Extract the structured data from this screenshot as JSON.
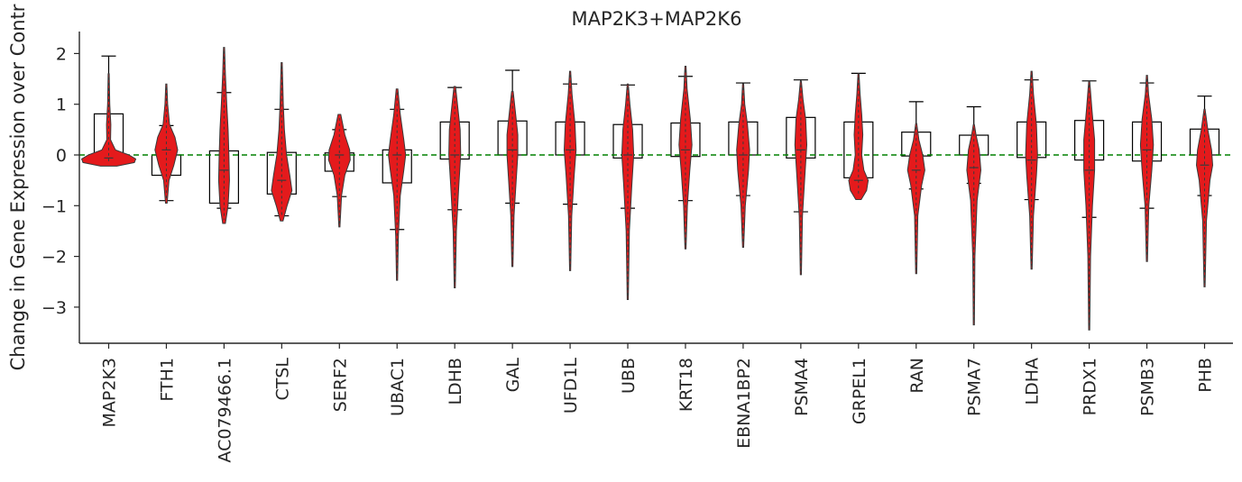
{
  "chart_data": {
    "type": "violin",
    "title": "MAP2K3+MAP2K6",
    "xlabel": "",
    "ylabel": "Change in Gene Expression over Contr",
    "ylim": [
      -3.75,
      2.4
    ],
    "yticks": [
      2,
      1,
      0,
      -1,
      -2,
      -3
    ],
    "ytick_labels": [
      "2",
      "1",
      "0",
      "−1",
      "−2",
      "−3"
    ],
    "reference_line": {
      "y": 0,
      "style": "dashed",
      "color": "#008000"
    },
    "violin_color": "#e41a1c",
    "categories": [
      "MAP2K3",
      "FTH1",
      "AC079466.1",
      "CTSL",
      "SERF2",
      "UBAC1",
      "LDHB",
      "GAL",
      "UFD1L",
      "UBB",
      "KRT18",
      "EBNA1BP2",
      "PSMA4",
      "GRPEL1",
      "RAN",
      "PSMA7",
      "LDHA",
      "PRDX1",
      "PSMB3",
      "PHB"
    ],
    "violins": [
      {
        "name": "MAP2K3",
        "min": -0.22,
        "max": 1.6,
        "median": -0.06,
        "profile": [
          [
            -0.22,
            0.3
          ],
          [
            -0.15,
            0.95
          ],
          [
            -0.08,
            1.0
          ],
          [
            0.0,
            0.75
          ],
          [
            0.1,
            0.25
          ],
          [
            0.3,
            0.07
          ],
          [
            0.6,
            0.08
          ],
          [
            1.0,
            0.04
          ],
          [
            1.6,
            0.02
          ]
        ]
      },
      {
        "name": "FTH1",
        "min": -0.95,
        "max": 1.4,
        "median": 0.1,
        "profile": [
          [
            -0.95,
            0.03
          ],
          [
            -0.5,
            0.1
          ],
          [
            -0.2,
            0.28
          ],
          [
            0.1,
            0.42
          ],
          [
            0.35,
            0.32
          ],
          [
            0.6,
            0.12
          ],
          [
            1.0,
            0.05
          ],
          [
            1.4,
            0.02
          ]
        ]
      },
      {
        "name": "AC079466.1",
        "min": -1.35,
        "max": 2.12,
        "median": -0.3,
        "profile": [
          [
            -1.35,
            0.05
          ],
          [
            -1.0,
            0.15
          ],
          [
            -0.5,
            0.2
          ],
          [
            0.0,
            0.18
          ],
          [
            0.5,
            0.15
          ],
          [
            1.0,
            0.1
          ],
          [
            1.6,
            0.05
          ],
          [
            2.12,
            0.02
          ]
        ]
      },
      {
        "name": "CTSL",
        "min": -1.3,
        "max": 1.82,
        "median": -0.5,
        "profile": [
          [
            -1.3,
            0.05
          ],
          [
            -1.0,
            0.2
          ],
          [
            -0.7,
            0.38
          ],
          [
            -0.4,
            0.3
          ],
          [
            0.0,
            0.18
          ],
          [
            0.5,
            0.1
          ],
          [
            1.0,
            0.06
          ],
          [
            1.82,
            0.02
          ]
        ]
      },
      {
        "name": "SERF2",
        "min": -1.42,
        "max": 0.8,
        "median": 0.0,
        "profile": [
          [
            -1.42,
            0.02
          ],
          [
            -0.8,
            0.08
          ],
          [
            -0.4,
            0.2
          ],
          [
            -0.1,
            0.4
          ],
          [
            0.1,
            0.38
          ],
          [
            0.4,
            0.2
          ],
          [
            0.8,
            0.05
          ]
        ]
      },
      {
        "name": "UBAC1",
        "min": -2.47,
        "max": 1.3,
        "median": 0.0,
        "profile": [
          [
            -2.47,
            0.02
          ],
          [
            -1.6,
            0.05
          ],
          [
            -0.8,
            0.12
          ],
          [
            -0.3,
            0.25
          ],
          [
            0.0,
            0.32
          ],
          [
            0.3,
            0.25
          ],
          [
            0.8,
            0.12
          ],
          [
            1.3,
            0.03
          ]
        ]
      },
      {
        "name": "LDHB",
        "min": -2.62,
        "max": 1.35,
        "median": 0.0,
        "profile": [
          [
            -2.62,
            0.02
          ],
          [
            -1.5,
            0.06
          ],
          [
            -0.6,
            0.15
          ],
          [
            0.0,
            0.22
          ],
          [
            0.5,
            0.2
          ],
          [
            1.0,
            0.1
          ],
          [
            1.35,
            0.03
          ]
        ]
      },
      {
        "name": "GAL",
        "min": -2.2,
        "max": 1.25,
        "median": 0.1,
        "profile": [
          [
            -2.2,
            0.02
          ],
          [
            -1.2,
            0.06
          ],
          [
            -0.5,
            0.14
          ],
          [
            0.0,
            0.2
          ],
          [
            0.4,
            0.2
          ],
          [
            0.9,
            0.1
          ],
          [
            1.25,
            0.03
          ]
        ]
      },
      {
        "name": "UFD1L",
        "min": -2.28,
        "max": 1.65,
        "median": 0.1,
        "profile": [
          [
            -2.28,
            0.02
          ],
          [
            -1.2,
            0.06
          ],
          [
            -0.4,
            0.15
          ],
          [
            0.1,
            0.22
          ],
          [
            0.6,
            0.18
          ],
          [
            1.2,
            0.07
          ],
          [
            1.65,
            0.02
          ]
        ]
      },
      {
        "name": "UBB",
        "min": -2.85,
        "max": 1.4,
        "median": 0.0,
        "profile": [
          [
            -2.85,
            0.02
          ],
          [
            -1.5,
            0.06
          ],
          [
            -0.6,
            0.15
          ],
          [
            0.0,
            0.22
          ],
          [
            0.5,
            0.18
          ],
          [
            1.0,
            0.08
          ],
          [
            1.4,
            0.02
          ]
        ]
      },
      {
        "name": "KRT18",
        "min": -1.85,
        "max": 1.75,
        "median": 0.1,
        "profile": [
          [
            -1.85,
            0.02
          ],
          [
            -1.0,
            0.07
          ],
          [
            -0.3,
            0.16
          ],
          [
            0.2,
            0.24
          ],
          [
            0.7,
            0.18
          ],
          [
            1.3,
            0.06
          ],
          [
            1.75,
            0.02
          ]
        ]
      },
      {
        "name": "EBNA1BP2",
        "min": -1.82,
        "max": 1.4,
        "median": 0.0,
        "profile": [
          [
            -1.82,
            0.02
          ],
          [
            -1.0,
            0.08
          ],
          [
            -0.3,
            0.2
          ],
          [
            0.1,
            0.24
          ],
          [
            0.6,
            0.16
          ],
          [
            1.0,
            0.06
          ],
          [
            1.4,
            0.02
          ]
        ]
      },
      {
        "name": "PSMA4",
        "min": -2.36,
        "max": 1.45,
        "median": 0.1,
        "profile": [
          [
            -2.36,
            0.02
          ],
          [
            -1.2,
            0.06
          ],
          [
            -0.4,
            0.15
          ],
          [
            0.2,
            0.22
          ],
          [
            0.7,
            0.18
          ],
          [
            1.1,
            0.08
          ],
          [
            1.45,
            0.02
          ]
        ]
      },
      {
        "name": "GRPEL1",
        "min": -0.88,
        "max": 1.6,
        "median": -0.5,
        "profile": [
          [
            -0.88,
            0.1
          ],
          [
            -0.7,
            0.3
          ],
          [
            -0.5,
            0.36
          ],
          [
            -0.3,
            0.2
          ],
          [
            0.0,
            0.12
          ],
          [
            0.4,
            0.16
          ],
          [
            0.8,
            0.12
          ],
          [
            1.2,
            0.06
          ],
          [
            1.6,
            0.02
          ]
        ]
      },
      {
        "name": "RAN",
        "min": -2.34,
        "max": 0.62,
        "median": -0.3,
        "profile": [
          [
            -2.34,
            0.02
          ],
          [
            -1.2,
            0.06
          ],
          [
            -0.6,
            0.2
          ],
          [
            -0.3,
            0.32
          ],
          [
            0.0,
            0.24
          ],
          [
            0.3,
            0.1
          ],
          [
            0.62,
            0.02
          ]
        ]
      },
      {
        "name": "PSMA7",
        "min": -3.35,
        "max": 0.6,
        "median": -0.25,
        "profile": [
          [
            -3.35,
            0.02
          ],
          [
            -2.0,
            0.04
          ],
          [
            -0.9,
            0.12
          ],
          [
            -0.3,
            0.26
          ],
          [
            0.1,
            0.2
          ],
          [
            0.4,
            0.08
          ],
          [
            0.6,
            0.02
          ]
        ]
      },
      {
        "name": "LDHA",
        "min": -2.25,
        "max": 1.65,
        "median": -0.1,
        "profile": [
          [
            -2.25,
            0.02
          ],
          [
            -1.2,
            0.07
          ],
          [
            -0.4,
            0.18
          ],
          [
            0.0,
            0.22
          ],
          [
            0.6,
            0.18
          ],
          [
            1.2,
            0.07
          ],
          [
            1.65,
            0.02
          ]
        ]
      },
      {
        "name": "PRDX1",
        "min": -3.45,
        "max": 1.45,
        "median": -0.3,
        "profile": [
          [
            -3.45,
            0.02
          ],
          [
            -2.0,
            0.05
          ],
          [
            -1.0,
            0.12
          ],
          [
            -0.3,
            0.2
          ],
          [
            0.3,
            0.2
          ],
          [
            0.9,
            0.1
          ],
          [
            1.45,
            0.02
          ]
        ]
      },
      {
        "name": "PSMB3",
        "min": -2.1,
        "max": 1.57,
        "median": 0.1,
        "profile": [
          [
            -2.1,
            0.02
          ],
          [
            -1.0,
            0.07
          ],
          [
            -0.3,
            0.18
          ],
          [
            0.2,
            0.24
          ],
          [
            0.7,
            0.18
          ],
          [
            1.2,
            0.06
          ],
          [
            1.57,
            0.02
          ]
        ]
      },
      {
        "name": "PHB",
        "min": -2.6,
        "max": 0.9,
        "median": -0.2,
        "profile": [
          [
            -2.6,
            0.02
          ],
          [
            -1.3,
            0.07
          ],
          [
            -0.5,
            0.2
          ],
          [
            -0.2,
            0.3
          ],
          [
            0.1,
            0.26
          ],
          [
            0.5,
            0.12
          ],
          [
            0.9,
            0.02
          ]
        ]
      }
    ],
    "boxes": [
      {
        "name": "MAP2K3",
        "top": 0.81,
        "bottom": 0.0,
        "cap_top": 1.95,
        "cap_bottom": 0.0
      },
      {
        "name": "FTH1",
        "top": 0.0,
        "bottom": -0.4,
        "cap_top": 0.58,
        "cap_bottom": -0.9
      },
      {
        "name": "AC079466.1",
        "top": 0.08,
        "bottom": -0.95,
        "cap_top": 1.23,
        "cap_bottom": -1.05
      },
      {
        "name": "CTSL",
        "top": 0.05,
        "bottom": -0.77,
        "cap_top": 0.9,
        "cap_bottom": -1.2
      },
      {
        "name": "SERF2",
        "top": 0.04,
        "bottom": -0.32,
        "cap_top": 0.5,
        "cap_bottom": -0.82
      },
      {
        "name": "UBAC1",
        "top": 0.1,
        "bottom": -0.55,
        "cap_top": 0.9,
        "cap_bottom": -1.47
      },
      {
        "name": "LDHB",
        "top": 0.65,
        "bottom": -0.08,
        "cap_top": 1.33,
        "cap_bottom": -1.08
      },
      {
        "name": "GAL",
        "top": 0.67,
        "bottom": 0.0,
        "cap_top": 1.67,
        "cap_bottom": -0.95
      },
      {
        "name": "UFD1L",
        "top": 0.65,
        "bottom": 0.0,
        "cap_top": 1.4,
        "cap_bottom": -0.97
      },
      {
        "name": "UBB",
        "top": 0.6,
        "bottom": -0.06,
        "cap_top": 1.38,
        "cap_bottom": -1.05
      },
      {
        "name": "KRT18",
        "top": 0.63,
        "bottom": -0.03,
        "cap_top": 1.55,
        "cap_bottom": -0.9
      },
      {
        "name": "EBNA1BP2",
        "top": 0.65,
        "bottom": 0.0,
        "cap_top": 1.42,
        "cap_bottom": -0.8
      },
      {
        "name": "PSMA4",
        "top": 0.74,
        "bottom": -0.06,
        "cap_top": 1.48,
        "cap_bottom": -1.12
      },
      {
        "name": "GRPEL1",
        "top": 0.65,
        "bottom": -0.45,
        "cap_top": 1.61,
        "cap_bottom": -0.45
      },
      {
        "name": "RAN",
        "top": 0.45,
        "bottom": -0.02,
        "cap_top": 1.05,
        "cap_bottom": -0.67
      },
      {
        "name": "PSMA7",
        "top": 0.39,
        "bottom": 0.0,
        "cap_top": 0.95,
        "cap_bottom": -0.56
      },
      {
        "name": "LDHA",
        "top": 0.65,
        "bottom": -0.05,
        "cap_top": 1.48,
        "cap_bottom": -0.88
      },
      {
        "name": "PRDX1",
        "top": 0.68,
        "bottom": -0.1,
        "cap_top": 1.46,
        "cap_bottom": -1.23
      },
      {
        "name": "PSMB3",
        "top": 0.65,
        "bottom": -0.12,
        "cap_top": 1.42,
        "cap_bottom": -1.05
      },
      {
        "name": "PHB",
        "top": 0.51,
        "bottom": 0.0,
        "cap_top": 1.16,
        "cap_bottom": -0.8
      }
    ]
  }
}
